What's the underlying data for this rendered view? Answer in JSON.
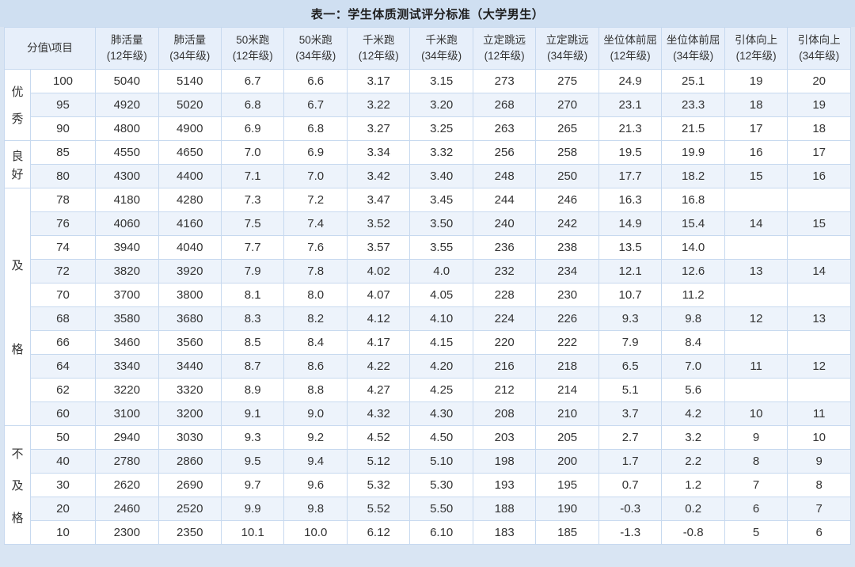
{
  "title": "表一：学生体质测试评分标准（大学男生）",
  "colors": {
    "page_bg": "#d9e5f3",
    "title_bar_bg": "#cfdff1",
    "header_bg": "#e7effa",
    "row_bg": "#ffffff",
    "row_alt_bg": "#edf3fb",
    "border": "#c7d9ef",
    "group_border": "#a9c3e2",
    "text": "#333333",
    "title_text": "#1f1f1f"
  },
  "table": {
    "corner_header": "分值\\项目",
    "columns": [
      {
        "name": "肺活量",
        "grade": "(12年级)"
      },
      {
        "name": "肺活量",
        "grade": "(34年级)"
      },
      {
        "name": "50米跑",
        "grade": "(12年级)"
      },
      {
        "name": "50米跑",
        "grade": "(34年级)"
      },
      {
        "name": "千米跑",
        "grade": "(12年级)"
      },
      {
        "name": "千米跑",
        "grade": "(34年级)"
      },
      {
        "name": "立定跳远",
        "grade": "(12年级)"
      },
      {
        "name": "立定跳远",
        "grade": "(34年级)"
      },
      {
        "name": "坐位体前屈",
        "grade": "(12年级)"
      },
      {
        "name": "坐位体前屈",
        "grade": "(34年级)"
      },
      {
        "name": "引体向上",
        "grade": "(12年级)"
      },
      {
        "name": "引体向上",
        "grade": "(34年级)"
      }
    ],
    "groups": [
      {
        "label": "优秀",
        "rows": [
          {
            "score": "100",
            "values": [
              "5040",
              "5140",
              "6.7",
              "6.6",
              "3.17",
              "3.15",
              "273",
              "275",
              "24.9",
              "25.1",
              "19",
              "20"
            ]
          },
          {
            "score": "95",
            "values": [
              "4920",
              "5020",
              "6.8",
              "6.7",
              "3.22",
              "3.20",
              "268",
              "270",
              "23.1",
              "23.3",
              "18",
              "19"
            ]
          },
          {
            "score": "90",
            "values": [
              "4800",
              "4900",
              "6.9",
              "6.8",
              "3.27",
              "3.25",
              "263",
              "265",
              "21.3",
              "21.5",
              "17",
              "18"
            ]
          }
        ]
      },
      {
        "label": "良好",
        "rows": [
          {
            "score": "85",
            "values": [
              "4550",
              "4650",
              "7.0",
              "6.9",
              "3.34",
              "3.32",
              "256",
              "258",
              "19.5",
              "19.9",
              "16",
              "17"
            ]
          },
          {
            "score": "80",
            "values": [
              "4300",
              "4400",
              "7.1",
              "7.0",
              "3.42",
              "3.40",
              "248",
              "250",
              "17.7",
              "18.2",
              "15",
              "16"
            ]
          }
        ]
      },
      {
        "label": "及格",
        "rows": [
          {
            "score": "78",
            "values": [
              "4180",
              "4280",
              "7.3",
              "7.2",
              "3.47",
              "3.45",
              "244",
              "246",
              "16.3",
              "16.8",
              "",
              ""
            ]
          },
          {
            "score": "76",
            "values": [
              "4060",
              "4160",
              "7.5",
              "7.4",
              "3.52",
              "3.50",
              "240",
              "242",
              "14.9",
              "15.4",
              "14",
              "15"
            ]
          },
          {
            "score": "74",
            "values": [
              "3940",
              "4040",
              "7.7",
              "7.6",
              "3.57",
              "3.55",
              "236",
              "238",
              "13.5",
              "14.0",
              "",
              ""
            ]
          },
          {
            "score": "72",
            "values": [
              "3820",
              "3920",
              "7.9",
              "7.8",
              "4.02",
              "4.0",
              "232",
              "234",
              "12.1",
              "12.6",
              "13",
              "14"
            ]
          },
          {
            "score": "70",
            "values": [
              "3700",
              "3800",
              "8.1",
              "8.0",
              "4.07",
              "4.05",
              "228",
              "230",
              "10.7",
              "11.2",
              "",
              ""
            ]
          },
          {
            "score": "68",
            "values": [
              "3580",
              "3680",
              "8.3",
              "8.2",
              "4.12",
              "4.10",
              "224",
              "226",
              "9.3",
              "9.8",
              "12",
              "13"
            ]
          },
          {
            "score": "66",
            "values": [
              "3460",
              "3560",
              "8.5",
              "8.4",
              "4.17",
              "4.15",
              "220",
              "222",
              "7.9",
              "8.4",
              "",
              ""
            ]
          },
          {
            "score": "64",
            "values": [
              "3340",
              "3440",
              "8.7",
              "8.6",
              "4.22",
              "4.20",
              "216",
              "218",
              "6.5",
              "7.0",
              "11",
              "12"
            ]
          },
          {
            "score": "62",
            "values": [
              "3220",
              "3320",
              "8.9",
              "8.8",
              "4.27",
              "4.25",
              "212",
              "214",
              "5.1",
              "5.6",
              "",
              ""
            ]
          },
          {
            "score": "60",
            "values": [
              "3100",
              "3200",
              "9.1",
              "9.0",
              "4.32",
              "4.30",
              "208",
              "210",
              "3.7",
              "4.2",
              "10",
              "11"
            ]
          }
        ]
      },
      {
        "label": "不及格",
        "rows": [
          {
            "score": "50",
            "values": [
              "2940",
              "3030",
              "9.3",
              "9.2",
              "4.52",
              "4.50",
              "203",
              "205",
              "2.7",
              "3.2",
              "9",
              "10"
            ]
          },
          {
            "score": "40",
            "values": [
              "2780",
              "2860",
              "9.5",
              "9.4",
              "5.12",
              "5.10",
              "198",
              "200",
              "1.7",
              "2.2",
              "8",
              "9"
            ]
          },
          {
            "score": "30",
            "values": [
              "2620",
              "2690",
              "9.7",
              "9.6",
              "5.32",
              "5.30",
              "193",
              "195",
              "0.7",
              "1.2",
              "7",
              "8"
            ]
          },
          {
            "score": "20",
            "values": [
              "2460",
              "2520",
              "9.9",
              "9.8",
              "5.52",
              "5.50",
              "188",
              "190",
              "-0.3",
              "0.2",
              "6",
              "7"
            ]
          },
          {
            "score": "10",
            "values": [
              "2300",
              "2350",
              "10.1",
              "10.0",
              "6.12",
              "6.10",
              "183",
              "185",
              "-1.3",
              "-0.8",
              "5",
              "6"
            ]
          }
        ]
      }
    ]
  }
}
